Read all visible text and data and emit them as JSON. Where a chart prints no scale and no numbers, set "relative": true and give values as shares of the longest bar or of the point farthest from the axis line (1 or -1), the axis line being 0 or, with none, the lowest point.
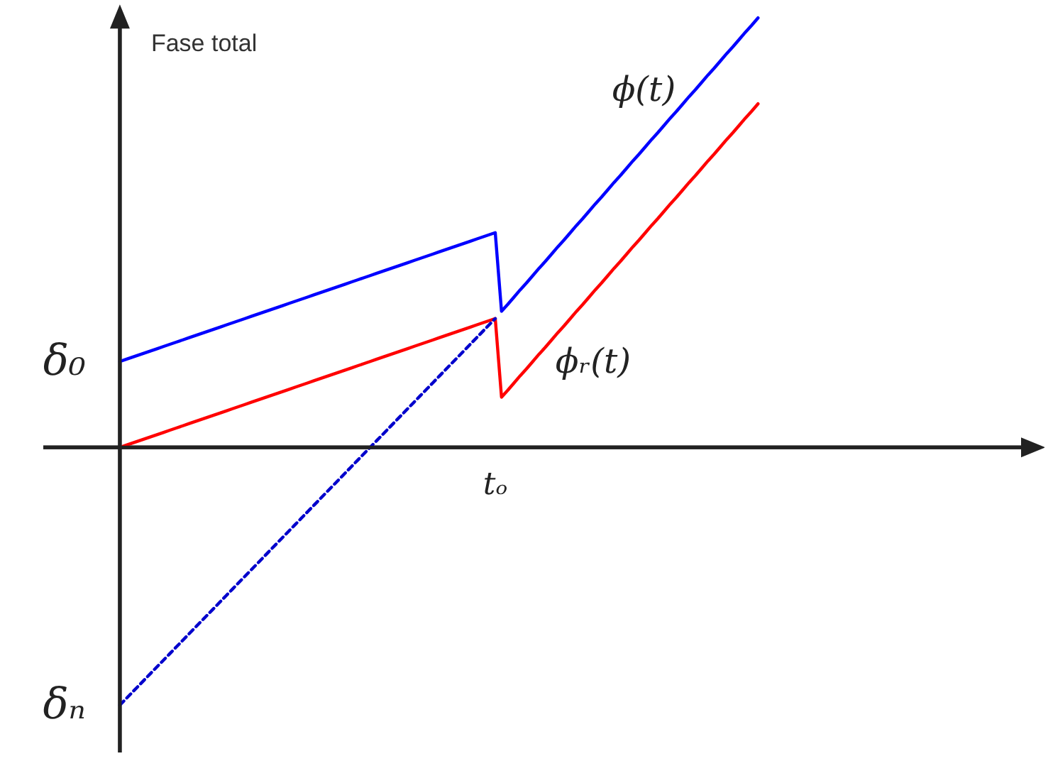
{
  "chart_data": {
    "type": "line",
    "relative": true,
    "ylabel": "Fase total",
    "categories": [
      null,
      null,
      null,
      null,
      null,
      null,
      null,
      null,
      null,
      null,
      null,
      null,
      null,
      null,
      null,
      null,
      null,
      null,
      null,
      null,
      null,
      null,
      null,
      null,
      null,
      null,
      null,
      null,
      null,
      null,
      null,
      null,
      null,
      null,
      null,
      null,
      null,
      null,
      null,
      null,
      null,
      null,
      null,
      null,
      null,
      null,
      null,
      null,
      null,
      null,
      null,
      null,
      null,
      null,
      null,
      null,
      null,
      null,
      null,
      null,
      null,
      null,
      null,
      null,
      null,
      null,
      null,
      null,
      null,
      null,
      null,
      null,
      null,
      null,
      null,
      null,
      null,
      null,
      null,
      null,
      null,
      null,
      null,
      null,
      null,
      null,
      null,
      null,
      null,
      null,
      null,
      null,
      null,
      null,
      null,
      null,
      null,
      null,
      null,
      null,
      null,
      null,
      null
    ],
    "series": [
      {
        "name": "ϕ(t)",
        "color": "#0000ff",
        "values": [
          0.2,
          0.205,
          0.21,
          0.215,
          0.22,
          0.225,
          0.23,
          0.235,
          0.24,
          0.245,
          0.25,
          0.255,
          0.26,
          0.265,
          0.27,
          0.275,
          0.28,
          0.285,
          0.29,
          0.295,
          0.3,
          0.305,
          0.31,
          0.315,
          0.32,
          0.325,
          0.33,
          0.335,
          0.34,
          0.345,
          0.35,
          0.355,
          0.36,
          0.365,
          0.37,
          0.375,
          0.38,
          0.385,
          0.39,
          0.395,
          0.4,
          0.405,
          0.41,
          0.415,
          0.42,
          0.425,
          0.43,
          0.435,
          0.44,
          0.445,
          0.45,
          0.455,
          0.46,
          0.465,
          0.47,
          0.475,
          0.48,
          0.485,
          0.49,
          0.495,
          0.5,
          0.317,
          0.333,
          0.35,
          0.367,
          0.383,
          0.4,
          0.417,
          0.433,
          0.45,
          0.467,
          0.483,
          0.5,
          0.517,
          0.533,
          0.55,
          0.567,
          0.583,
          0.6,
          0.617,
          0.633,
          0.65,
          0.667,
          0.683,
          0.7,
          0.717,
          0.733,
          0.75,
          0.767,
          0.783,
          0.8,
          0.817,
          0.833,
          0.85,
          0.867,
          0.883,
          0.9,
          0.917,
          0.933,
          0.95,
          0.967,
          0.983,
          1.0
        ]
      },
      {
        "name": "ϕᵣ(t)",
        "color": "#ff0000",
        "values": [
          0,
          0.005,
          0.01,
          0.015,
          0.02,
          0.025,
          0.03,
          0.035,
          0.04,
          0.045,
          0.05,
          0.055,
          0.06,
          0.065,
          0.07,
          0.075,
          0.08,
          0.085,
          0.09,
          0.095,
          0.1,
          0.105,
          0.11,
          0.115,
          0.12,
          0.125,
          0.13,
          0.135,
          0.14,
          0.145,
          0.15,
          0.155,
          0.16,
          0.165,
          0.17,
          0.175,
          0.18,
          0.185,
          0.19,
          0.195,
          0.2,
          0.205,
          0.21,
          0.215,
          0.22,
          0.225,
          0.23,
          0.235,
          0.24,
          0.245,
          0.25,
          0.255,
          0.26,
          0.265,
          0.27,
          0.275,
          0.28,
          0.285,
          0.29,
          0.295,
          0.3,
          0.117,
          0.133,
          0.15,
          0.167,
          0.183,
          0.2,
          0.217,
          0.233,
          0.25,
          0.267,
          0.283,
          0.3,
          0.317,
          0.333,
          0.35,
          0.367,
          0.383,
          0.4,
          0.417,
          0.433,
          0.45,
          0.467,
          0.483,
          0.5,
          0.517,
          0.533,
          0.55,
          0.567,
          0.583,
          0.6,
          0.617,
          0.633,
          0.65,
          0.667,
          0.683,
          0.7,
          0.717,
          0.733,
          0.75,
          0.767,
          0.783,
          0.8
        ]
      },
      {
        "color": "#0000cc",
        "line_style": "dashed",
        "values": [
          -0.6,
          -0.585,
          -0.57,
          -0.555,
          -0.54,
          -0.525,
          -0.51,
          -0.495,
          -0.48,
          -0.465,
          -0.45,
          -0.435,
          -0.42,
          -0.405,
          -0.39,
          -0.375,
          -0.36,
          -0.345,
          -0.33,
          -0.315,
          -0.3,
          -0.285,
          -0.27,
          -0.255,
          -0.24,
          -0.225,
          -0.21,
          -0.195,
          -0.18,
          -0.165,
          -0.15,
          -0.135,
          -0.12,
          -0.105,
          -0.09,
          -0.075,
          -0.06,
          -0.045,
          -0.03,
          -0.015,
          0,
          0.015,
          0.03,
          0.045,
          0.06,
          0.075,
          0.09,
          0.105,
          0.12,
          0.135,
          0.15,
          0.165,
          0.18,
          0.195,
          0.21,
          0.225,
          0.24,
          0.255,
          0.27,
          0.285,
          0.3,
          null,
          null,
          null,
          null,
          null,
          null,
          null,
          null,
          null,
          null,
          null,
          null,
          null,
          null,
          null,
          null,
          null,
          null,
          null,
          null,
          null,
          null,
          null,
          null,
          null,
          null,
          null,
          null,
          null,
          null,
          null,
          null,
          null,
          null,
          null,
          null,
          null,
          null,
          null,
          null,
          null,
          null
        ]
      }
    ],
    "annotations": [
      "δ₀",
      "δₙ",
      "tₒ"
    ]
  }
}
